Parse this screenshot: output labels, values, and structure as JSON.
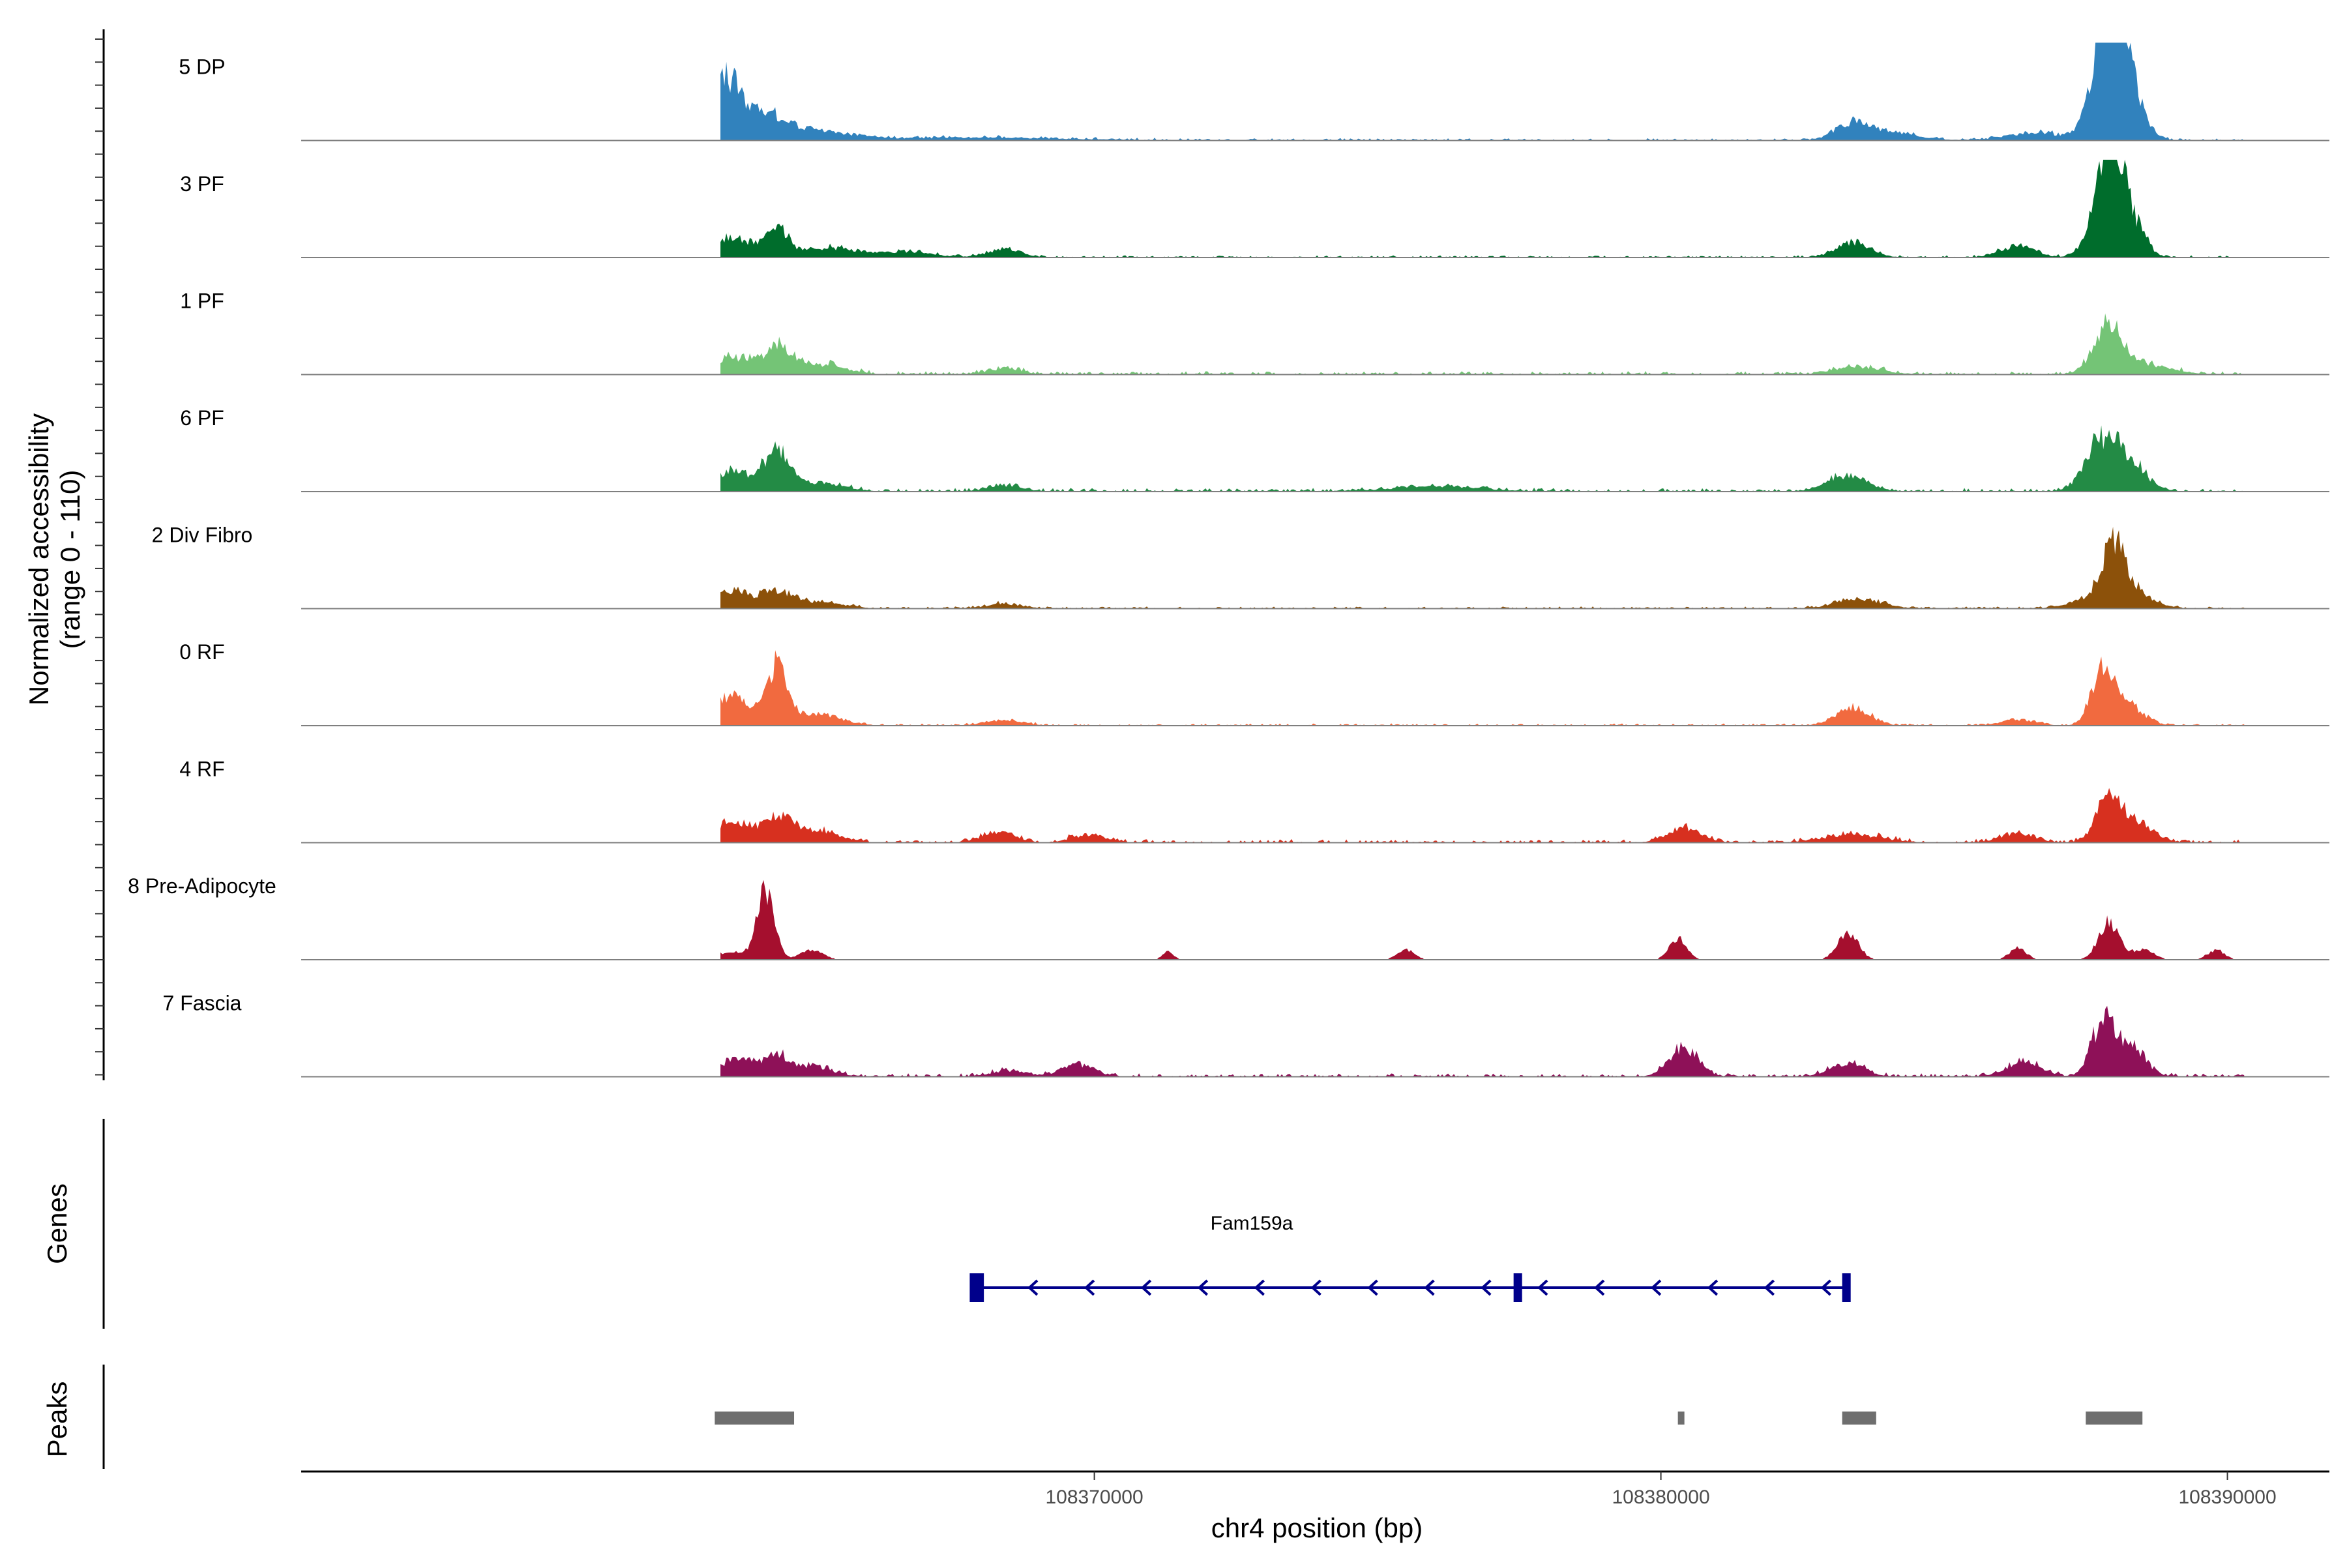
{
  "chart_data": {
    "type": "area",
    "title": "",
    "ylabel_line1": "Normalized accessibility",
    "ylabel_line2": "(range 0 - 110)",
    "ylim": [
      0,
      110
    ],
    "xlabel": "chr4 position (bp)",
    "xlim": [
      108356000,
      108391800
    ],
    "xticks": [
      108370000,
      108380000,
      108390000
    ],
    "xtick_labels": [
      "108370000",
      "108380000",
      "108390000"
    ],
    "region_start": 108363400,
    "region_end": 108390300,
    "series": [
      {
        "name": "5 DP",
        "color": "#3182bd",
        "peaks": [
          [
            108363500,
            60,
            250
          ],
          [
            108364200,
            25,
            400
          ],
          [
            108365200,
            8,
            600
          ],
          [
            108368000,
            3,
            1500
          ],
          [
            108383400,
            16,
            300
          ],
          [
            108384000,
            8,
            500
          ],
          [
            108386600,
            8,
            500
          ],
          [
            108387800,
            60,
            250
          ],
          [
            108388000,
            95,
            220
          ],
          [
            108388300,
            40,
            250
          ]
        ],
        "noise": 2
      },
      {
        "name": "3 PF",
        "color": "#006d2c",
        "peaks": [
          [
            108363600,
            20,
            400
          ],
          [
            108364400,
            30,
            200
          ],
          [
            108365300,
            10,
            400
          ],
          [
            108368400,
            8,
            300
          ],
          [
            108366600,
            6,
            500
          ],
          [
            108383400,
            16,
            300
          ],
          [
            108386300,
            12,
            300
          ],
          [
            108387800,
            50,
            250
          ],
          [
            108388000,
            95,
            200
          ],
          [
            108388400,
            25,
            200
          ]
        ],
        "noise": 2
      },
      {
        "name": "1 PF",
        "color": "#74c476",
        "peaks": [
          [
            108363600,
            18,
            300
          ],
          [
            108364400,
            28,
            250
          ],
          [
            108365200,
            10,
            400
          ],
          [
            108368400,
            6,
            300
          ],
          [
            108383500,
            8,
            400
          ],
          [
            108387900,
            45,
            250
          ],
          [
            108388500,
            10,
            500
          ]
        ],
        "noise": 3
      },
      {
        "name": "6 PF",
        "color": "#238b45",
        "peaks": [
          [
            108363600,
            20,
            300
          ],
          [
            108364400,
            40,
            250
          ],
          [
            108365200,
            8,
            400
          ],
          [
            108368400,
            6,
            300
          ],
          [
            108376000,
            5,
            800
          ],
          [
            108383300,
            16,
            350
          ],
          [
            108387800,
            50,
            300
          ],
          [
            108388300,
            22,
            300
          ]
        ],
        "noise": 3
      },
      {
        "name": "2 Div Fibro",
        "color": "#8c510a",
        "peaks": [
          [
            108363600,
            18,
            300
          ],
          [
            108364400,
            16,
            300
          ],
          [
            108365200,
            6,
            400
          ],
          [
            108368400,
            5,
            300
          ],
          [
            108383500,
            10,
            400
          ],
          [
            108387700,
            12,
            400
          ],
          [
            108388000,
            55,
            200
          ],
          [
            108388400,
            15,
            300
          ]
        ],
        "noise": 2
      },
      {
        "name": "0 RF",
        "color": "#f16a3f",
        "peaks": [
          [
            108363600,
            30,
            300
          ],
          [
            108364400,
            60,
            180
          ],
          [
            108365100,
            12,
            400
          ],
          [
            108368400,
            6,
            300
          ],
          [
            108383400,
            18,
            300
          ],
          [
            108387800,
            55,
            200
          ],
          [
            108388200,
            22,
            300
          ],
          [
            108386300,
            6,
            300
          ]
        ],
        "noise": 2
      },
      {
        "name": "4 RF",
        "color": "#d7301f",
        "peaks": [
          [
            108363600,
            22,
            300
          ],
          [
            108364400,
            24,
            250
          ],
          [
            108365100,
            12,
            400
          ],
          [
            108368300,
            10,
            300
          ],
          [
            108369900,
            8,
            300
          ],
          [
            108380400,
            14,
            300
          ],
          [
            108383400,
            8,
            500
          ],
          [
            108386300,
            10,
            300
          ],
          [
            108387900,
            45,
            220
          ],
          [
            108388400,
            20,
            300
          ]
        ],
        "noise": 3
      },
      {
        "name": "8 Pre-Adipocyte",
        "color": "#a50f2e",
        "peaks": [
          [
            108364200,
            70,
            150
          ],
          [
            108363600,
            8,
            300
          ],
          [
            108365000,
            10,
            200
          ],
          [
            108371300,
            8,
            100
          ],
          [
            108375500,
            10,
            150
          ],
          [
            108380300,
            22,
            150
          ],
          [
            108383300,
            28,
            180
          ],
          [
            108386300,
            12,
            150
          ],
          [
            108387900,
            38,
            180
          ],
          [
            108388500,
            10,
            200
          ],
          [
            108389800,
            10,
            150
          ]
        ],
        "noise": 0
      },
      {
        "name": "7 Fascia",
        "color": "#8e1158",
        "peaks": [
          [
            108363700,
            18,
            300
          ],
          [
            108364400,
            20,
            250
          ],
          [
            108365100,
            10,
            300
          ],
          [
            108368500,
            6,
            300
          ],
          [
            108369700,
            12,
            300
          ],
          [
            108380400,
            30,
            250
          ],
          [
            108383300,
            14,
            300
          ],
          [
            108386400,
            14,
            300
          ],
          [
            108387800,
            55,
            200
          ],
          [
            108388300,
            30,
            250
          ]
        ],
        "noise": 3
      }
    ],
    "genes": {
      "axis_title": "Genes",
      "name": "Fam159a",
      "color": "#00008b",
      "strand": "-",
      "start": 108367900,
      "end": 108383300,
      "exons": [
        [
          108367800,
          108368050
        ],
        [
          108377400,
          108377550
        ],
        [
          108383200,
          108383350
        ]
      ]
    },
    "peaks": {
      "axis_title": "Peaks",
      "color": "#6e6e6e",
      "regions": [
        [
          108363300,
          108364700
        ],
        [
          108380300,
          108380400
        ],
        [
          108383200,
          108383800
        ],
        [
          108387500,
          108388500
        ]
      ]
    }
  }
}
